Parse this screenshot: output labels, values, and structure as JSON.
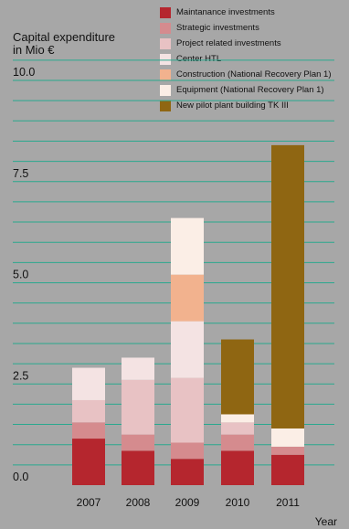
{
  "chart_data": {
    "type": "bar",
    "stacked": true,
    "ylabel": "Capital expenditure\nin Mio €",
    "xlabel": "Year",
    "ylim": [
      0,
      10.5
    ],
    "yticks": [
      "0.0",
      "2.5",
      "5.0",
      "7.5",
      "10.0"
    ],
    "ytick_values": [
      0,
      2.5,
      5.0,
      7.5,
      10.0
    ],
    "grid": "horizontal",
    "legend_position": "top-right",
    "categories": [
      "2007",
      "2008",
      "2009",
      "2010",
      "2011"
    ],
    "series": [
      {
        "name": "Maintanance investments",
        "color": "#b5262e",
        "values": [
          1.15,
          0.85,
          0.65,
          0.85,
          0.75
        ]
      },
      {
        "name": "Strategic investments",
        "color": "#d58b8e",
        "values": [
          0.4,
          0.4,
          0.4,
          0.4,
          0.2
        ]
      },
      {
        "name": "Project related investments",
        "color": "#e8c2c4",
        "values": [
          0.55,
          1.35,
          1.6,
          0.3,
          0.0
        ]
      },
      {
        "name": "Center HTL",
        "color": "#f4e3e3",
        "values": [
          0.8,
          0.55,
          1.4,
          0.0,
          0.0
        ]
      },
      {
        "name": "Construction (National Recovery Plan 1)",
        "color": "#f2b28e",
        "values": [
          0.0,
          0.0,
          1.15,
          0.0,
          0.0
        ]
      },
      {
        "name": "Equipment (National Recovery Plan 1)",
        "color": "#fbeee6",
        "values": [
          0.0,
          0.0,
          1.4,
          0.2,
          0.45
        ]
      },
      {
        "name": "New pilot plant building TK III",
        "color": "#8f6612",
        "values": [
          0.0,
          0.0,
          0.0,
          1.85,
          7.0
        ]
      }
    ]
  },
  "colors": {
    "background": "#a7a7a7",
    "gridline": "#2aa88e"
  }
}
